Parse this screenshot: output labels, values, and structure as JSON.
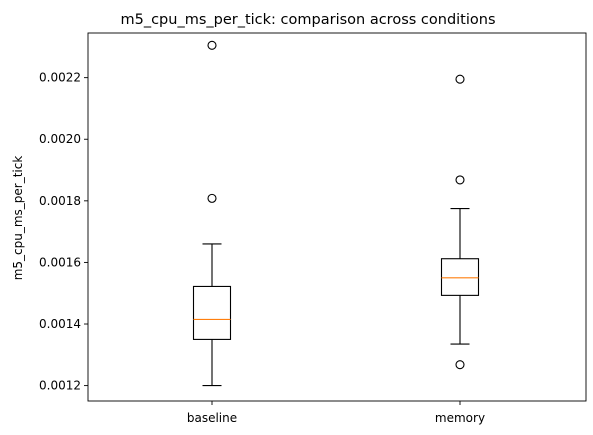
{
  "chart_data": {
    "type": "box",
    "title": "m5_cpu_ms_per_tick: comparison across conditions",
    "xlabel": "",
    "ylabel": "m5_cpu_ms_per_tick",
    "categories": [
      "baseline",
      "memory"
    ],
    "ylim": [
      0.00115,
      0.002345
    ],
    "yticks": [
      0.0012,
      0.0014,
      0.0016,
      0.0018,
      0.002,
      0.0022
    ],
    "ytick_labels": [
      "0.0012",
      "0.0014",
      "0.0016",
      "0.0018",
      "0.0020",
      "0.0022"
    ],
    "boxes": [
      {
        "name": "baseline",
        "whisker_low": 0.0012,
        "q1": 0.00135,
        "median": 0.001415,
        "q3": 0.001522,
        "whisker_high": 0.00166,
        "outliers": [
          0.001808,
          0.002305
        ]
      },
      {
        "name": "memory",
        "whisker_low": 0.001335,
        "q1": 0.001493,
        "median": 0.00155,
        "q3": 0.001612,
        "whisker_high": 0.001775,
        "outliers": [
          0.001268,
          0.001868,
          0.002195
        ]
      }
    ],
    "colors": {
      "box": "#000000",
      "median": "#ff7f0e",
      "outlier": "#000000"
    },
    "grid": false,
    "legend": "none"
  }
}
